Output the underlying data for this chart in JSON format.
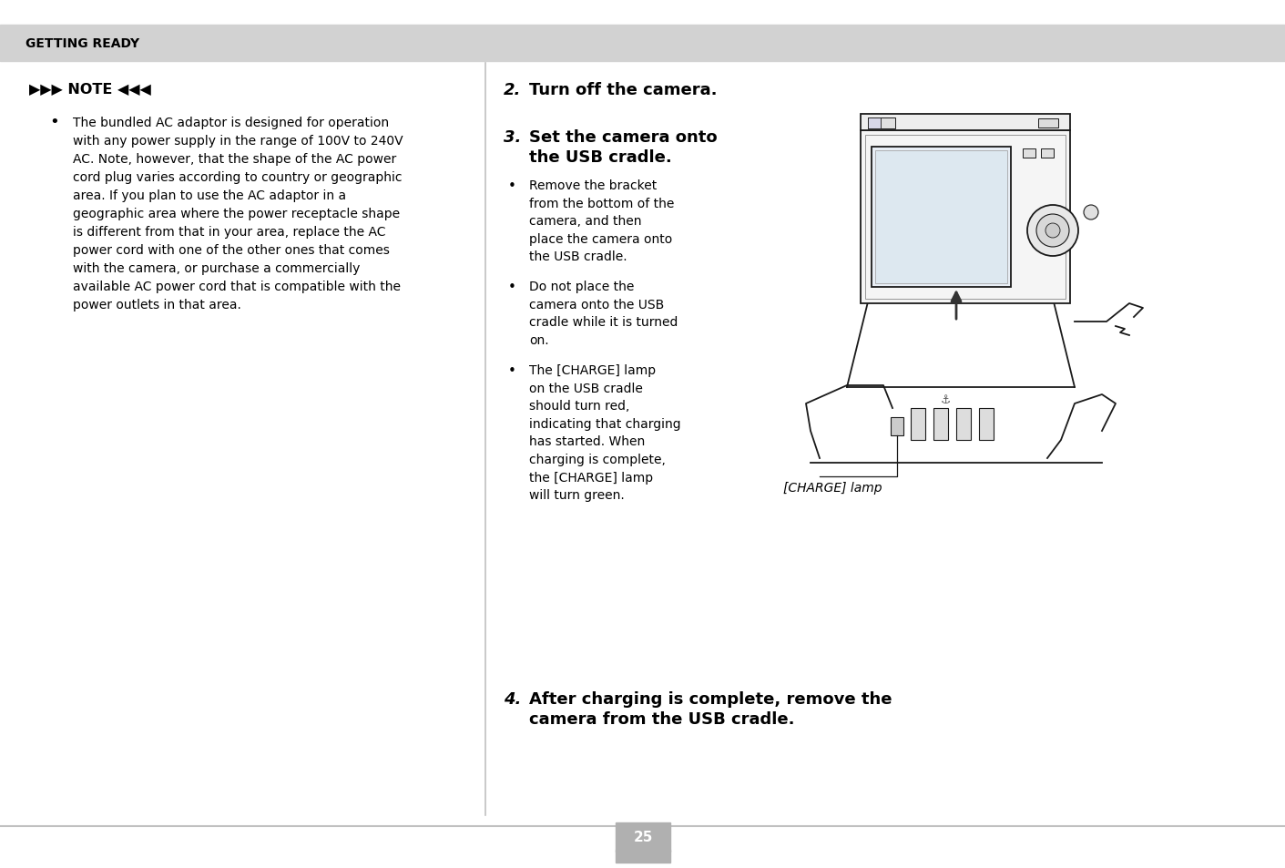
{
  "bg_color": "#ffffff",
  "header_bg": "#d2d2d2",
  "header_text": "GETTING READY",
  "divider_color": "#c0c0c0",
  "page_number": "25",
  "page_num_bg": "#b0b0b0",
  "page_num_color": "#ffffff",
  "note_title": "▶▶▶ NOTE ◀◀◀",
  "note_lines": [
    "The bundled AC adaptor is designed for operation",
    "with any power supply in the range of 100V to 240V",
    "AC. Note, however, that the shape of the AC power",
    "cord plug varies according to country or geographic",
    "area. If you plan to use the AC adaptor in a",
    "geographic area where the power receptacle shape",
    "is different from that in your area, replace the AC",
    "power cord with one of the other ones that comes",
    "with the camera, or purchase a commercially",
    "available AC power cord that is compatible with the",
    "power outlets in that area."
  ],
  "step2_num": "2.",
  "step2_text": "Turn off the camera.",
  "step3_num": "3.",
  "step3_line1": "Set the camera onto",
  "step3_line2": "the USB cradle.",
  "bullet1_lines": [
    "Remove the bracket",
    "from the bottom of the",
    "camera, and then",
    "place the camera onto",
    "the USB cradle."
  ],
  "bullet2_lines": [
    "Do not place the",
    "camera onto the USB",
    "cradle while it is turned",
    "on."
  ],
  "bullet3_lines": [
    "The [CHARGE] lamp",
    "on the USB cradle",
    "should turn red,",
    "indicating that charging",
    "has started. When",
    "charging is complete,",
    "the [CHARGE] lamp",
    "will turn green."
  ],
  "charge_label": "[CHARGE] lamp",
  "step4_line1": "After charging is complete, remove the",
  "step4_line2": "camera from the USB cradle."
}
